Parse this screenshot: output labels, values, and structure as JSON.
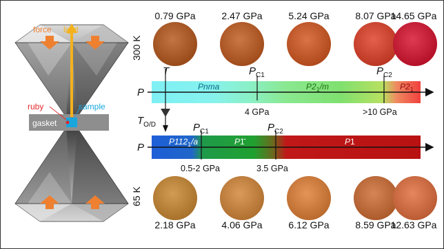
{
  "cell": {
    "force_label": "force",
    "light_label": "light",
    "ruby_label": "ruby",
    "sample_label": "sample",
    "gasket_label": "gasket",
    "colors": {
      "force": "#ee8030",
      "light": "#f3b21d",
      "ruby": "#e3262b",
      "sample": "#18a6dd"
    }
  },
  "row_300k": {
    "temperature_label": "300 K",
    "pressures": [
      "0.79 GPa",
      "2.47 GPa",
      "5.24 GPa",
      "8.07 GPa",
      "14.65 GPa"
    ],
    "sample_colors": [
      "#b5561a",
      "#c0581c",
      "#d2551e",
      "#df3e25",
      "#d7102c"
    ]
  },
  "row_65k": {
    "temperature_label": "65 K",
    "pressures": [
      "2.18 GPa",
      "4.06 GPa",
      "6.12 GPa",
      "8.59 GPa",
      "12.63 GPa"
    ],
    "sample_colors": [
      "#c9862f",
      "#d28436",
      "#df7d33",
      "#cd6a30",
      "#df6b3b"
    ]
  },
  "axis_300k": {
    "axis_label": "P",
    "marker_t": "T",
    "pc1_main": "P",
    "pc1_sub": "C1",
    "pc2_main": "P",
    "pc2_sub": "C2",
    "phases": [
      {
        "main": "Pnma",
        "sub": "",
        "tail": "",
        "color": "#0a6a86"
      },
      {
        "main": "P2",
        "sub": "1",
        "tail": "/m",
        "color": "#1f6e12"
      },
      {
        "main": "P2",
        "sub": "1",
        "tail": "",
        "color": "#8a0a12"
      }
    ],
    "ticks": [
      "4 GPa",
      ">10 GPa"
    ]
  },
  "axis_65k": {
    "axis_label": "P",
    "marker_main": "T",
    "marker_sub": "O/D",
    "pc1_main": "P",
    "pc1_sub": "C1",
    "pc2_main": "P",
    "pc2_sub": "C2",
    "phases": [
      {
        "main": "P112",
        "sub": "1",
        "tail": "/a",
        "color": "#ffffff"
      },
      {
        "main": "P",
        "sub": "",
        "tail": "1̄",
        "color": "#ffffff"
      },
      {
        "main": "P",
        "sub": "",
        "tail": "1",
        "color": "#ffffff"
      }
    ],
    "ticks": [
      "0.5-2 GPa",
      "3.5 GPa"
    ]
  }
}
